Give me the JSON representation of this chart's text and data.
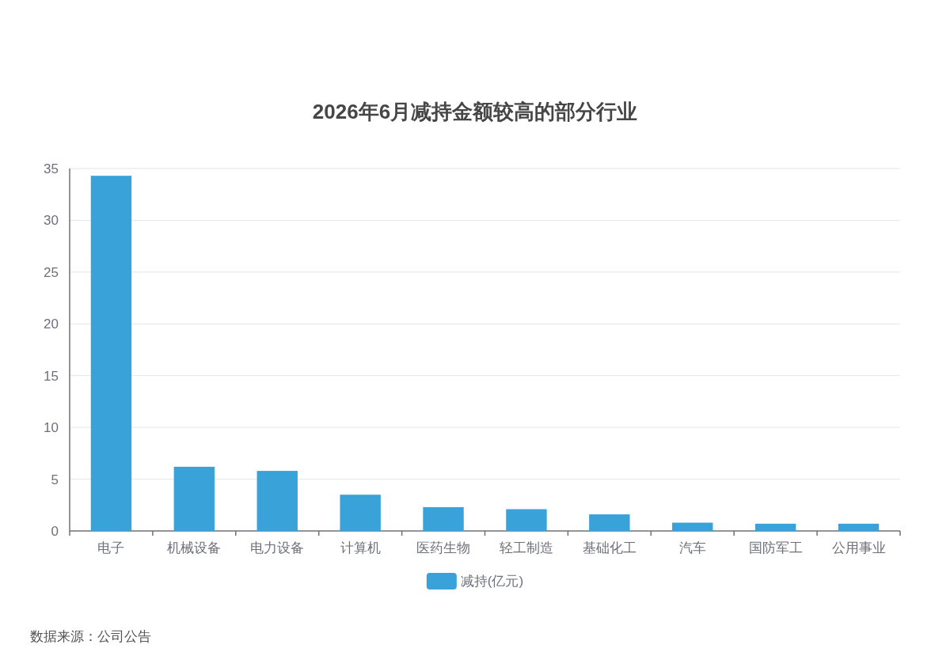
{
  "chart_data": {
    "type": "bar",
    "title": "2026年6月减持金额较高的部分行业",
    "categories": [
      "电子",
      "机械设备",
      "电力设备",
      "计算机",
      "医药生物",
      "轻工制造",
      "基础化工",
      "汽车",
      "国防军工",
      "公用事业"
    ],
    "series": [
      {
        "name": "减持(亿元)",
        "color": "#38a2d9",
        "values": [
          34.3,
          6.2,
          5.8,
          3.5,
          2.3,
          2.1,
          1.6,
          0.8,
          0.7,
          0.7
        ]
      }
    ],
    "ylim": [
      0,
      35
    ],
    "yticks": [
      0,
      5,
      10,
      15,
      20,
      25,
      30,
      35
    ],
    "grid": "y",
    "legend": "bottom",
    "annotations": [
      "数据来源：公司公告"
    ]
  }
}
